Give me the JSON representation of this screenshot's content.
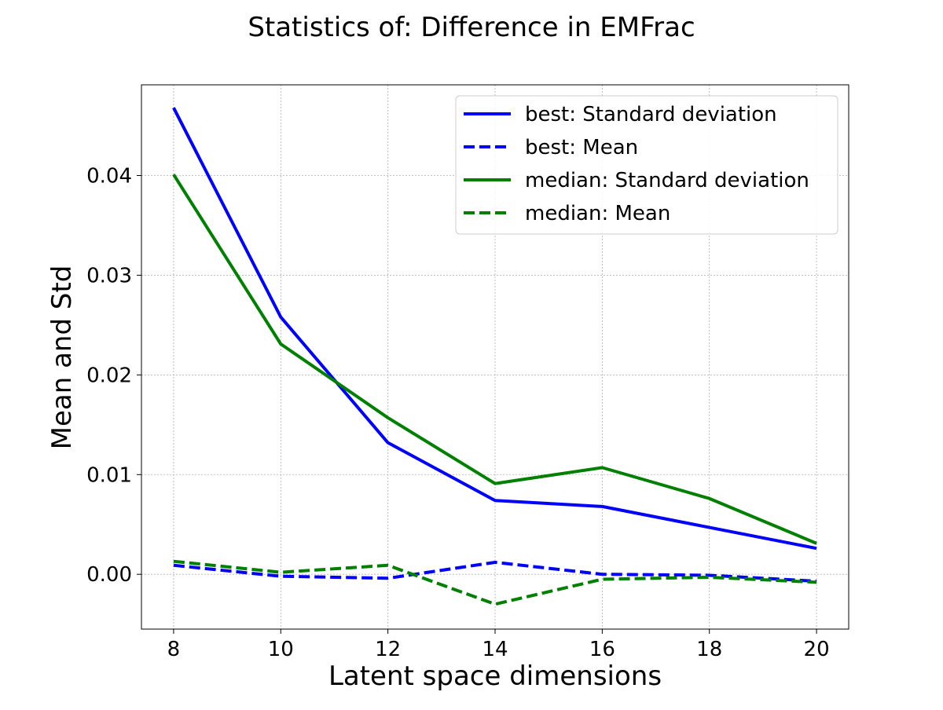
{
  "chart_data": {
    "type": "line",
    "title": "Statistics of: Difference in EMFrac",
    "xlabel": "Latent space dimensions",
    "ylabel": "Mean and Std",
    "x": [
      8,
      10,
      12,
      14,
      16,
      18,
      20
    ],
    "xlim": [
      7.4,
      20.6
    ],
    "ylim": [
      -0.0055,
      0.0491
    ],
    "xticks": [
      8,
      10,
      12,
      14,
      16,
      18,
      20
    ],
    "xtick_labels": [
      "8",
      "10",
      "12",
      "14",
      "16",
      "18",
      "20"
    ],
    "yticks": [
      0.0,
      0.01,
      0.02,
      0.03,
      0.04
    ],
    "ytick_labels": [
      "0.00",
      "0.01",
      "0.02",
      "0.03",
      "0.04"
    ],
    "grid": true,
    "legend_position": "top-right",
    "series": [
      {
        "name": "best: Standard deviation",
        "color": "#0000ff",
        "style": "solid",
        "values": [
          0.0468,
          0.0258,
          0.0132,
          0.0074,
          0.0068,
          0.0047,
          0.0026
        ]
      },
      {
        "name": "best: Mean",
        "color": "#0000ff",
        "style": "dashed",
        "values": [
          0.0009,
          -0.0002,
          -0.0004,
          0.0012,
          0.0,
          -0.0001,
          -0.0007
        ]
      },
      {
        "name": "median: Standard deviation",
        "color": "#008000",
        "style": "solid",
        "values": [
          0.0401,
          0.0231,
          0.0157,
          0.0091,
          0.0107,
          0.0076,
          0.0031
        ]
      },
      {
        "name": "median: Mean",
        "color": "#008000",
        "style": "dashed",
        "values": [
          0.0013,
          0.0002,
          0.0009,
          -0.003,
          -0.0005,
          -0.0003,
          -0.0008
        ]
      }
    ]
  }
}
